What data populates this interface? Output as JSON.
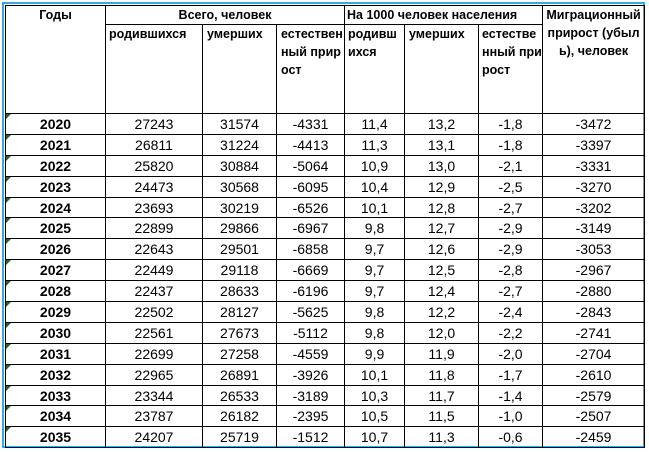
{
  "header": {
    "years": "Годы",
    "total_group": "Всего, человек",
    "per_1000_group": "На 1000 человек населения",
    "migration": "Миграционный прирост (убыль), человек",
    "born": "родившихся",
    "died": "умерших",
    "natural": "естественный прирост",
    "born_short": "родивших­ся",
    "died_rate": "умерших",
    "natural_rate": "естественный прирост"
  },
  "rows": [
    {
      "year": "2020",
      "born": "27243",
      "died": "31574",
      "natural": "-4331",
      "born_rate": "11,4",
      "died_rate": "13,2",
      "natural_rate": "-1,8",
      "migration": "-3472"
    },
    {
      "year": "2021",
      "born": "26811",
      "died": "31224",
      "natural": "-4413",
      "born_rate": "11,3",
      "died_rate": "13,1",
      "natural_rate": "-1,8",
      "migration": "-3397"
    },
    {
      "year": "2022",
      "born": "25820",
      "died": "30884",
      "natural": "-5064",
      "born_rate": "10,9",
      "died_rate": "13,0",
      "natural_rate": "-2,1",
      "migration": "-3331"
    },
    {
      "year": "2023",
      "born": "24473",
      "died": "30568",
      "natural": "-6095",
      "born_rate": "10,4",
      "died_rate": "12,9",
      "natural_rate": "-2,5",
      "migration": "-3270"
    },
    {
      "year": "2024",
      "born": "23693",
      "died": "30219",
      "natural": "-6526",
      "born_rate": "10,1",
      "died_rate": "12,8",
      "natural_rate": "-2,7",
      "migration": "-3202"
    },
    {
      "year": "2025",
      "born": "22899",
      "died": "29866",
      "natural": "-6967",
      "born_rate": "9,8",
      "died_rate": "12,7",
      "natural_rate": "-2,9",
      "migration": "-3149"
    },
    {
      "year": "2026",
      "born": "22643",
      "died": "29501",
      "natural": "-6858",
      "born_rate": "9,7",
      "died_rate": "12,6",
      "natural_rate": "-2,9",
      "migration": "-3053"
    },
    {
      "year": "2027",
      "born": "22449",
      "died": "29118",
      "natural": "-6669",
      "born_rate": "9,7",
      "died_rate": "12,5",
      "natural_rate": "-2,8",
      "migration": "-2967"
    },
    {
      "year": "2028",
      "born": "22437",
      "died": "28633",
      "natural": "-6196",
      "born_rate": "9,7",
      "died_rate": "12,4",
      "natural_rate": "-2,7",
      "migration": "-2880"
    },
    {
      "year": "2029",
      "born": "22502",
      "died": "28127",
      "natural": "-5625",
      "born_rate": "9,8",
      "died_rate": "12,2",
      "natural_rate": "-2,4",
      "migration": "-2843"
    },
    {
      "year": "2030",
      "born": "22561",
      "died": "27673",
      "natural": "-5112",
      "born_rate": "9,8",
      "died_rate": "12,0",
      "natural_rate": "-2,2",
      "migration": "-2741"
    },
    {
      "year": "2031",
      "born": "22699",
      "died": "27258",
      "natural": "-4559",
      "born_rate": "9,9",
      "died_rate": "11,9",
      "natural_rate": "-2,0",
      "migration": "-2704"
    },
    {
      "year": "2032",
      "born": "22965",
      "died": "26891",
      "natural": "-3926",
      "born_rate": "10,1",
      "died_rate": "11,8",
      "natural_rate": "-1,7",
      "migration": "-2610"
    },
    {
      "year": "2033",
      "born": "23344",
      "died": "26533",
      "natural": "-3189",
      "born_rate": "10,3",
      "died_rate": "11,7",
      "natural_rate": "-1,4",
      "migration": "-2579"
    },
    {
      "year": "2034",
      "born": "23787",
      "died": "26182",
      "natural": "-2395",
      "born_rate": "10,5",
      "died_rate": "11,5",
      "natural_rate": "-1,0",
      "migration": "-2507"
    },
    {
      "year": "2035",
      "born": "24207",
      "died": "25719",
      "natural": "-1512",
      "born_rate": "10,7",
      "died_rate": "11,3",
      "natural_rate": "-0,6",
      "migration": "-2459"
    }
  ],
  "colors": {
    "frame_border": "#36a9e1",
    "cell_border": "#000000",
    "corner_marker": "#2f5f2f"
  }
}
